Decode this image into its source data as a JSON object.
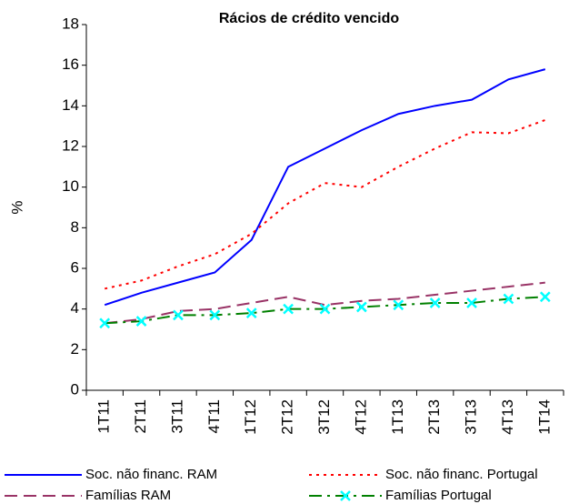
{
  "chart_data": {
    "type": "line",
    "title": "Rácios de crédito vencido",
    "y_label": "%",
    "categories": [
      "1T11",
      "2T11",
      "3T11",
      "4T11",
      "1T12",
      "2T12",
      "3T12",
      "4T12",
      "1T13",
      "2T13",
      "3T13",
      "4T13",
      "1T14"
    ],
    "ylim": [
      0,
      18
    ],
    "yticks": [
      0,
      2,
      4,
      6,
      8,
      10,
      12,
      14,
      16,
      18
    ],
    "series": [
      {
        "name": "Soc. não financ. RAM",
        "color": "#0000ff",
        "line_style": "solid",
        "values": [
          4.2,
          4.8,
          5.3,
          5.8,
          7.4,
          11.0,
          11.9,
          12.8,
          13.6,
          14.0,
          14.3,
          15.3,
          15.8
        ]
      },
      {
        "name": "Soc. não financ. Portugal",
        "color": "#ff0000",
        "line_style": "dotted",
        "values": [
          5.0,
          5.4,
          6.1,
          6.7,
          7.7,
          9.2,
          10.2,
          10.0,
          11.0,
          11.9,
          12.7,
          12.65,
          13.3
        ]
      },
      {
        "name": "Famílias RAM",
        "color": "#993366",
        "line_style": "dashed",
        "values": [
          3.3,
          3.5,
          3.9,
          4.0,
          4.3,
          4.6,
          4.2,
          4.4,
          4.5,
          4.7,
          4.9,
          5.1,
          5.3
        ]
      },
      {
        "name": "Famílias Portugal",
        "color": "#008000",
        "line_style": "dashdot",
        "marker": "x",
        "marker_color": "#00ffff",
        "values": [
          3.3,
          3.4,
          3.7,
          3.7,
          3.8,
          4.0,
          4.0,
          4.1,
          4.2,
          4.3,
          4.3,
          4.5,
          4.6
        ]
      }
    ]
  }
}
